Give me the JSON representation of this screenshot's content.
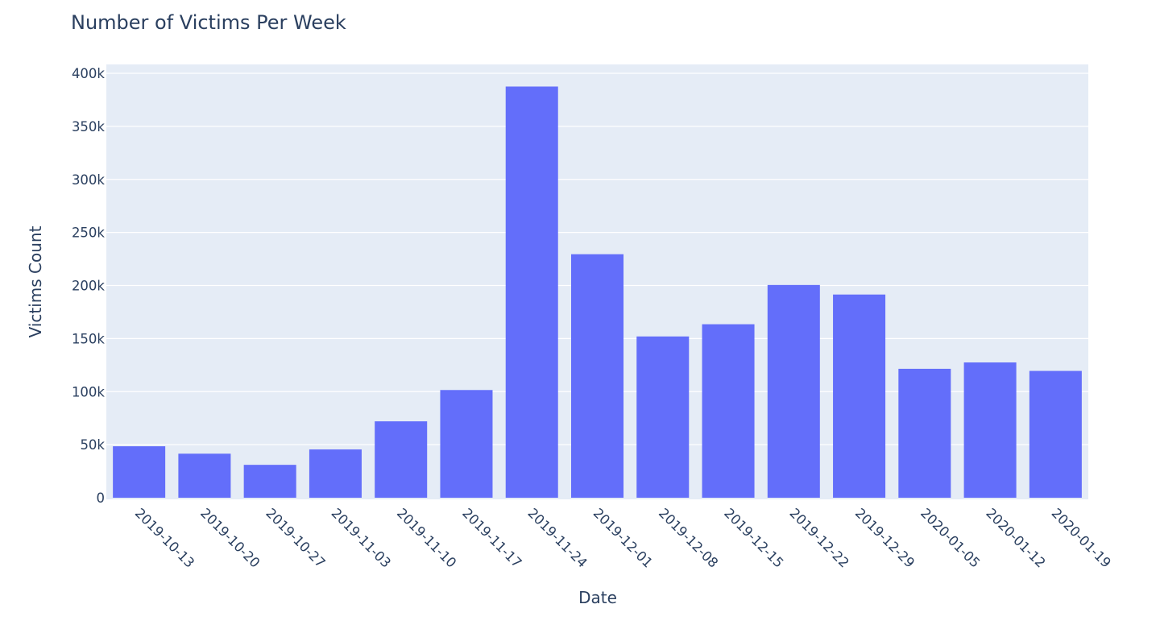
{
  "chart_data": {
    "type": "bar",
    "title": "Number of Victims Per Week",
    "xlabel": "Date",
    "ylabel": "Victims Count",
    "categories": [
      "2019-10-13",
      "2019-10-20",
      "2019-10-27",
      "2019-11-03",
      "2019-11-10",
      "2019-11-17",
      "2019-11-24",
      "2019-12-01",
      "2019-12-08",
      "2019-12-15",
      "2019-12-22",
      "2019-12-29",
      "2020-01-05",
      "2020-01-12",
      "2020-01-19"
    ],
    "values": [
      48500,
      41500,
      31000,
      45500,
      72000,
      101500,
      387500,
      229500,
      152000,
      163500,
      200500,
      191500,
      121500,
      127500,
      119500
    ],
    "ylim": [
      0,
      400000
    ],
    "yticks": [
      0,
      50000,
      100000,
      150000,
      200000,
      250000,
      300000,
      350000,
      400000
    ],
    "ytick_labels": [
      "0",
      "50k",
      "100k",
      "150k",
      "200k",
      "250k",
      "300k",
      "350k",
      "400k"
    ],
    "grid": true,
    "colors": {
      "bar": "#636efa",
      "plot_background": "#e5ecf6",
      "grid": "#ffffff",
      "text": "#2a3f5f"
    }
  }
}
